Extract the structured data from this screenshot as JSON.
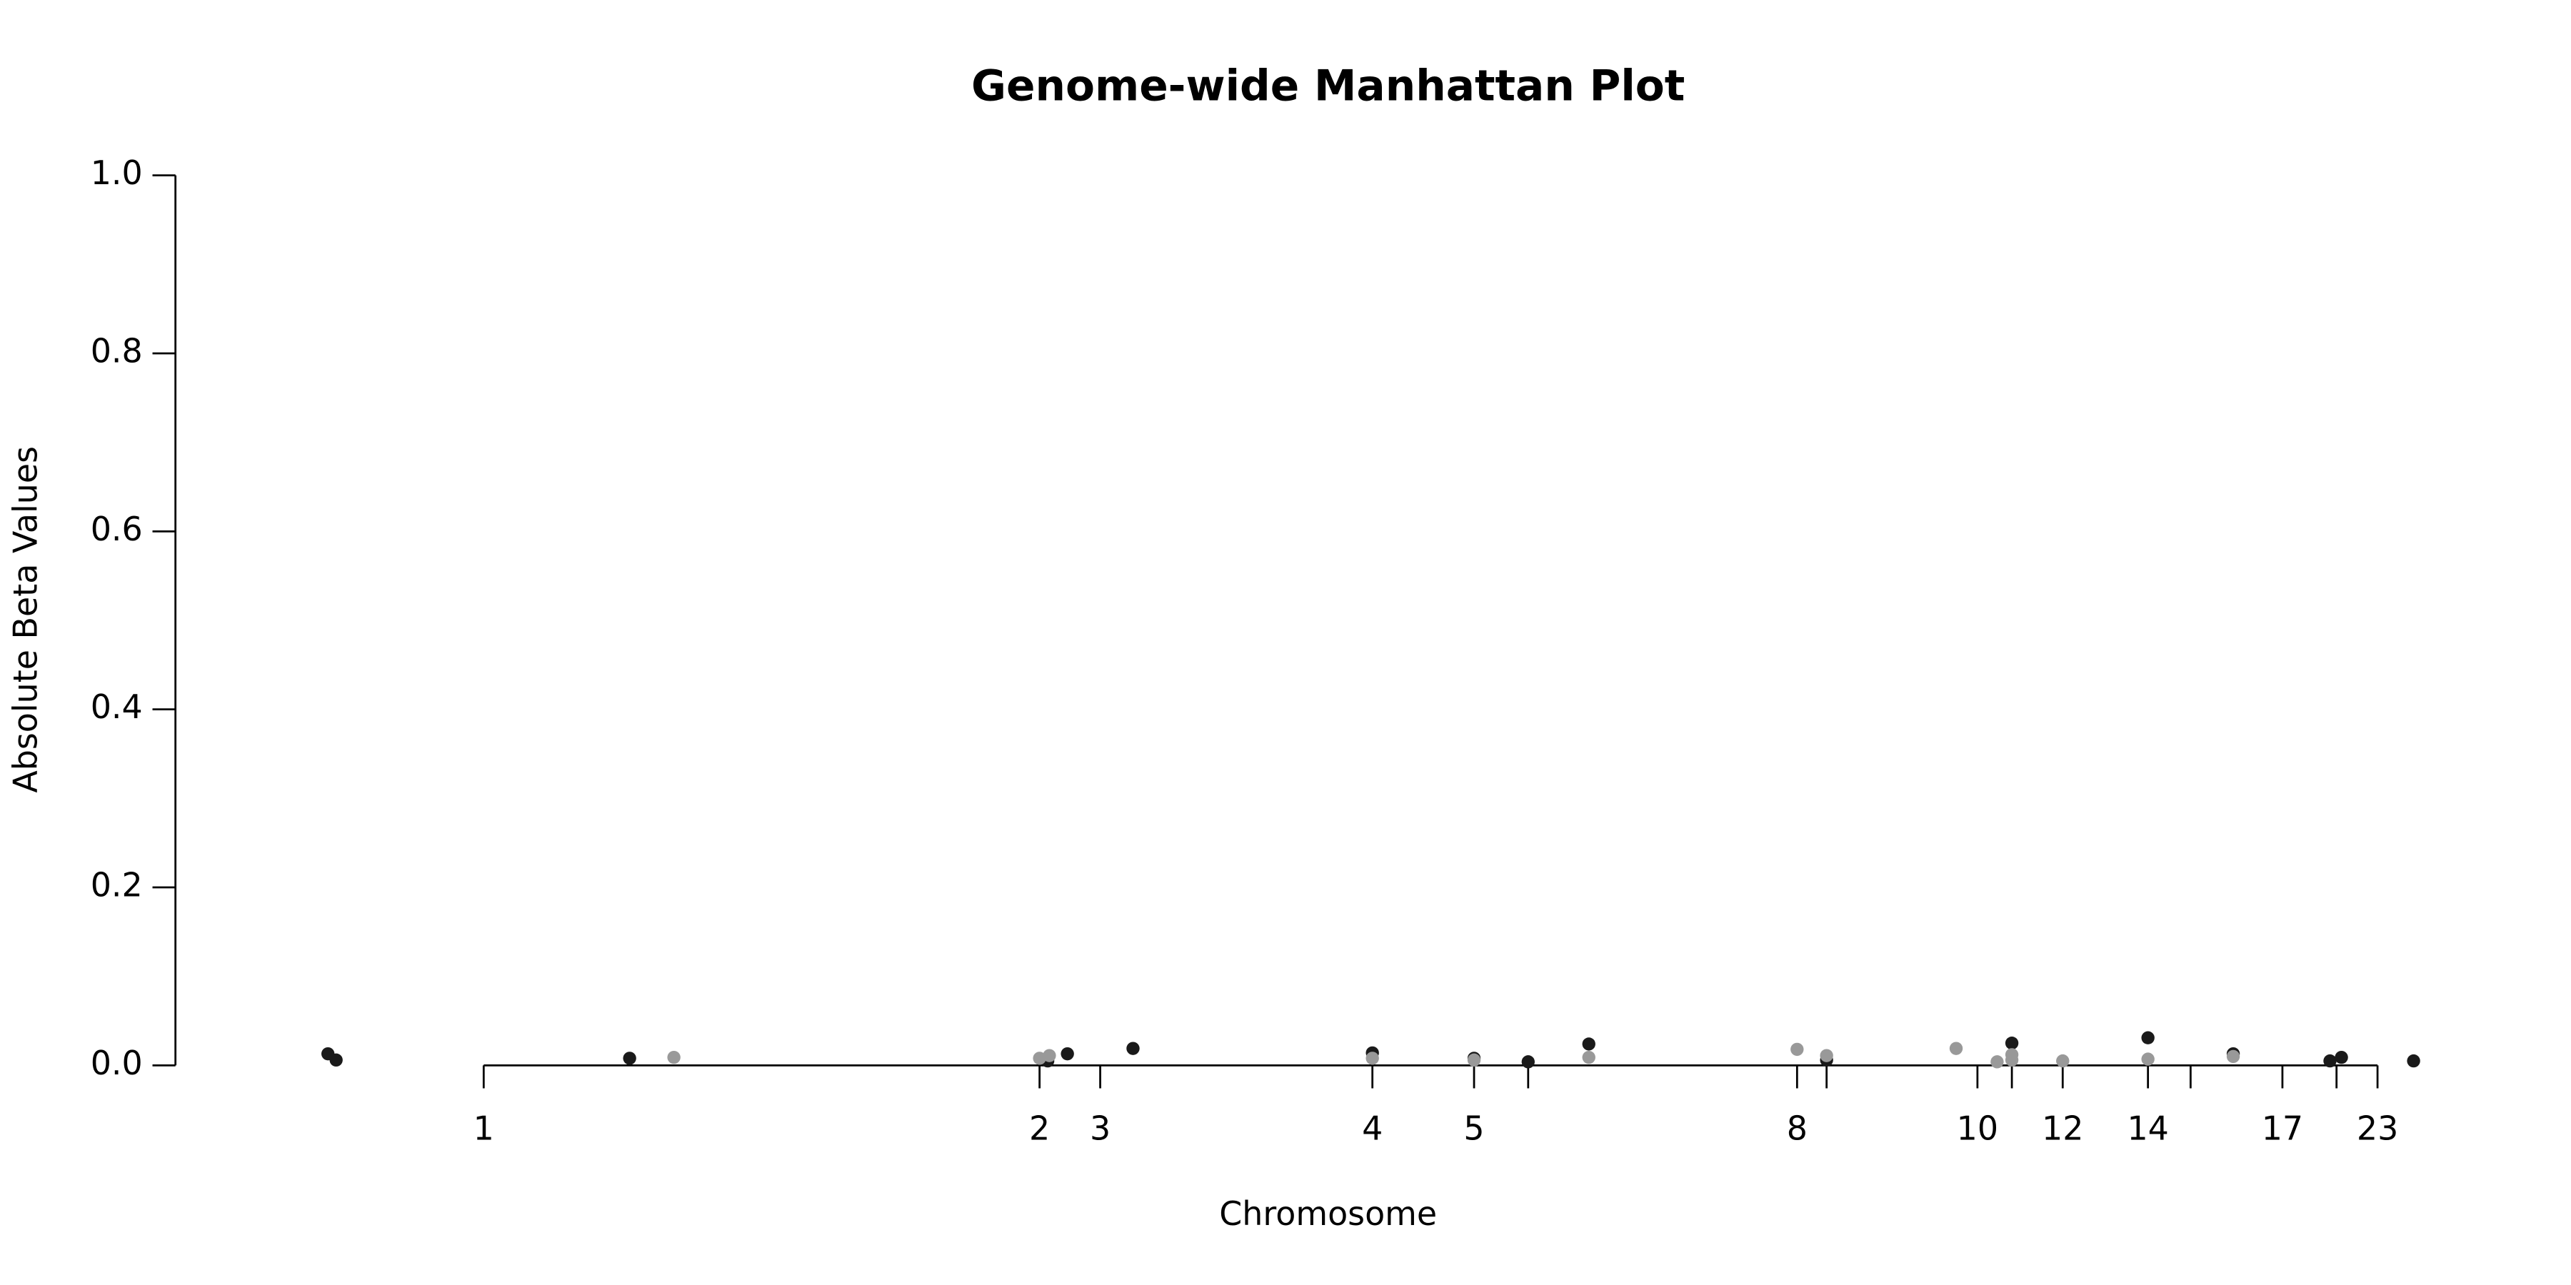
{
  "chart_data": {
    "type": "scatter",
    "title": "Genome-wide Manhattan Plot",
    "x_label": "Chromosome",
    "y_label": "Absolute Beta Values",
    "xlim": [
      0,
      1393
    ],
    "ylim": [
      0,
      1
    ],
    "xticks": [
      {
        "value": 188,
        "label": "1"
      },
      {
        "value": 527,
        "label": "2"
      },
      {
        "value": 564,
        "label": "3"
      },
      {
        "value": 730,
        "label": "4"
      },
      {
        "value": 792,
        "label": "5"
      },
      {
        "value": 825,
        "label": null
      },
      {
        "value": 989,
        "label": "8"
      },
      {
        "value": 1007,
        "label": null
      },
      {
        "value": 1099,
        "label": "10"
      },
      {
        "value": 1120,
        "label": null
      },
      {
        "value": 1151,
        "label": "12"
      },
      {
        "value": 1203,
        "label": "14"
      },
      {
        "value": 1229,
        "label": null
      },
      {
        "value": 1285,
        "label": "17"
      },
      {
        "value": 1318,
        "label": null
      },
      {
        "value": 1343,
        "label": "23"
      }
    ],
    "yticks": [
      {
        "value": 0,
        "label": "0.0"
      },
      0.2,
      0.4,
      0.6,
      0.8,
      {
        "value": 1,
        "label": "1.0"
      }
    ],
    "series": [
      {
        "color": "#1a1a1a",
        "x": [
          93,
          98,
          277,
          532,
          544,
          584,
          730,
          792,
          825,
          862,
          1007,
          1120,
          1203,
          1255,
          1314,
          1321,
          1365
        ],
        "values": [
          0.013,
          0.006,
          0.008,
          0.005,
          0.013,
          0.019,
          0.014,
          0.008,
          0.004,
          0.024,
          0.006,
          0.025,
          0.031,
          0.013,
          0.005,
          0.009,
          0.005
        ]
      },
      {
        "color": "#999999",
        "x": [
          304,
          527,
          533,
          730,
          792,
          862,
          989,
          1007,
          1086,
          1111,
          1120,
          1120,
          1151,
          1203,
          1255
        ],
        "values": [
          0.009,
          0.008,
          0.011,
          0.008,
          0.006,
          0.009,
          0.018,
          0.011,
          0.019,
          0.004,
          0.012,
          0.006,
          0.005,
          0.007,
          0.01
        ]
      }
    ]
  }
}
